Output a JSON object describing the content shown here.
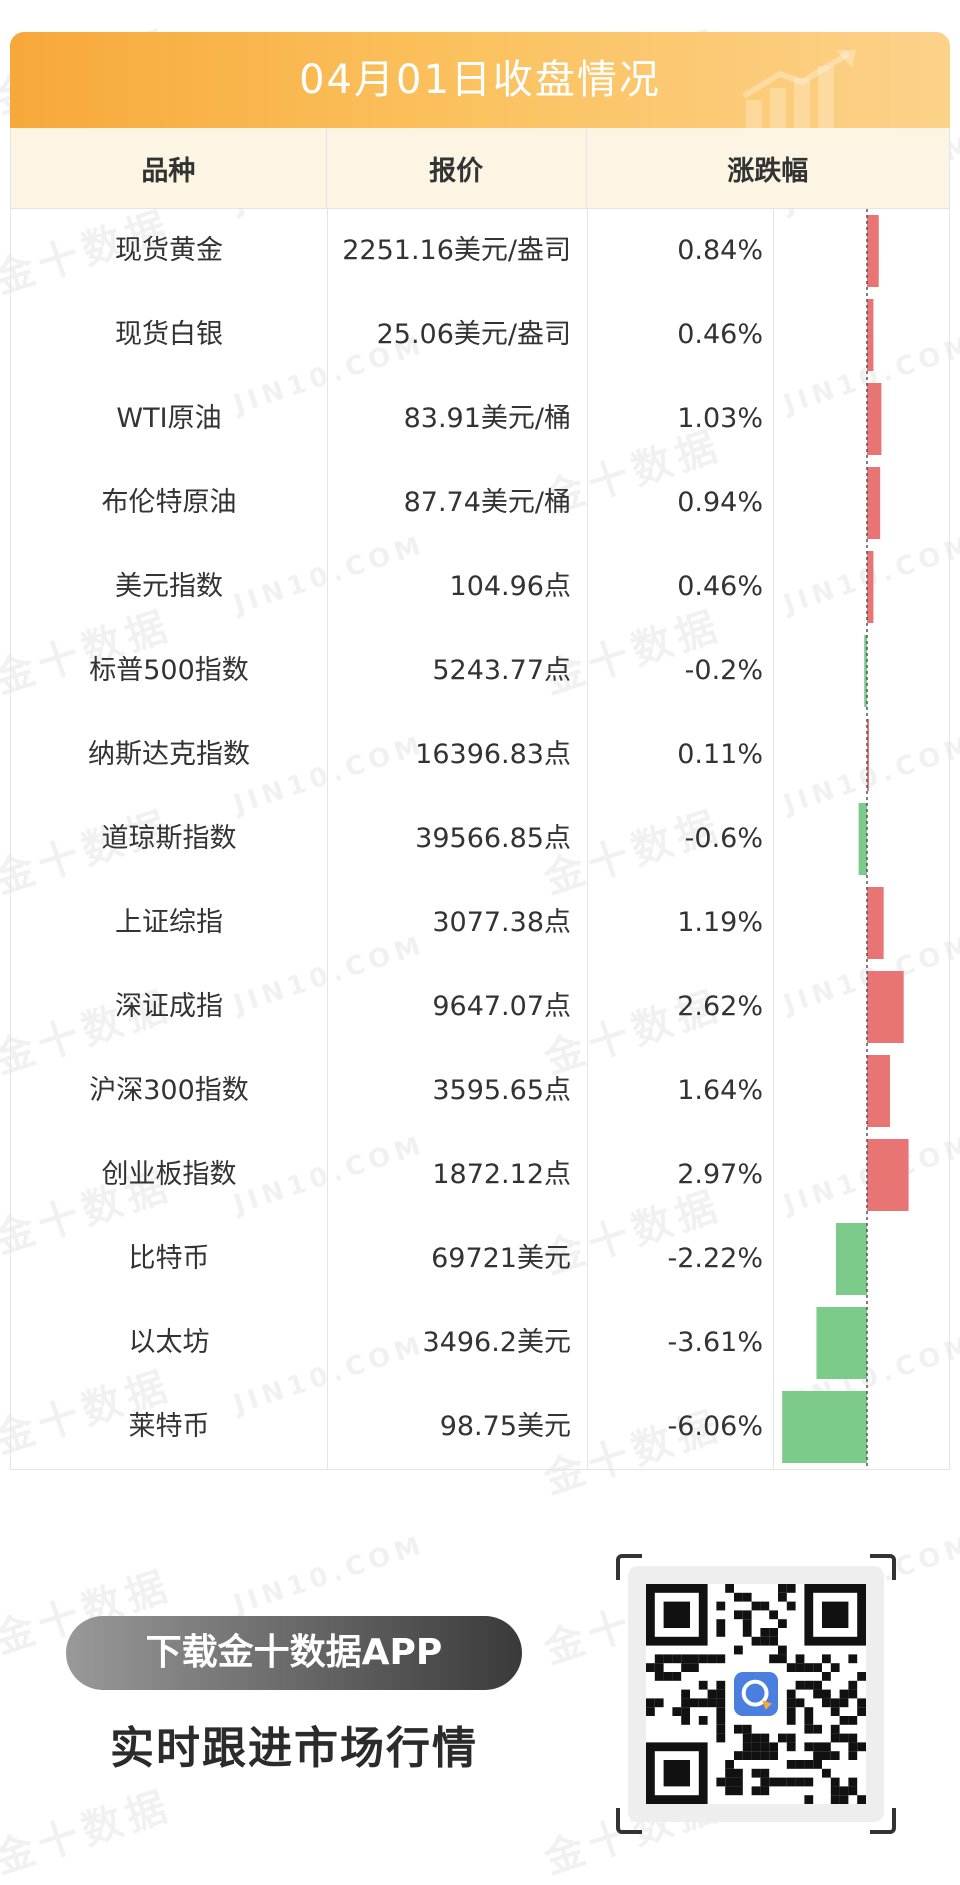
{
  "watermark": {
    "cn": "金十数据",
    "en": "JIN10.COM"
  },
  "header": {
    "title": "04月01日收盘情况"
  },
  "table": {
    "columns": [
      "品种",
      "报价",
      "涨跌幅"
    ],
    "rows": [
      {
        "name": "现货黄金",
        "price": "2251.16美元/盎司",
        "change": "0.84%",
        "change_value": 0.84
      },
      {
        "name": "现货白银",
        "price": "25.06美元/盎司",
        "change": "0.46%",
        "change_value": 0.46
      },
      {
        "name": "WTI原油",
        "price": "83.91美元/桶",
        "change": "1.03%",
        "change_value": 1.03
      },
      {
        "name": "布伦特原油",
        "price": "87.74美元/桶",
        "change": "0.94%",
        "change_value": 0.94
      },
      {
        "name": "美元指数",
        "price": "104.96点",
        "change": "0.46%",
        "change_value": 0.46
      },
      {
        "name": "标普500指数",
        "price": "5243.77点",
        "change": "-0.2%",
        "change_value": -0.2
      },
      {
        "name": "纳斯达克指数",
        "price": "16396.83点",
        "change": "0.11%",
        "change_value": 0.11
      },
      {
        "name": "道琼斯指数",
        "price": "39566.85点",
        "change": "-0.6%",
        "change_value": -0.6
      },
      {
        "name": "上证综指",
        "price": "3077.38点",
        "change": "1.19%",
        "change_value": 1.19
      },
      {
        "name": "深证成指",
        "price": "9647.07点",
        "change": "2.62%",
        "change_value": 2.62
      },
      {
        "name": "沪深300指数",
        "price": "3595.65点",
        "change": "1.64%",
        "change_value": 1.64
      },
      {
        "name": "创业板指数",
        "price": "1872.12点",
        "change": "2.97%",
        "change_value": 2.97
      },
      {
        "name": "比特币",
        "price": "69721美元",
        "change": "-2.22%",
        "change_value": -2.22
      },
      {
        "name": "以太坊",
        "price": "3496.2美元",
        "change": "-3.61%",
        "change_value": -3.61
      },
      {
        "name": "莱特币",
        "price": "98.75美元",
        "change": "-6.06%",
        "change_value": -6.06
      }
    ]
  },
  "colors": {
    "up": "#e87474",
    "down": "#7dcb8b",
    "header_bg": "#fdf5e3",
    "title_bar": "#f7a83a"
  },
  "promo": {
    "button_label": "下载金十数据APP",
    "subtitle": "实时跟进市场行情"
  },
  "icons": {
    "title_art": "rising-bar-chart-icon",
    "qr_logo": "jin10-app-logo-icon"
  }
}
